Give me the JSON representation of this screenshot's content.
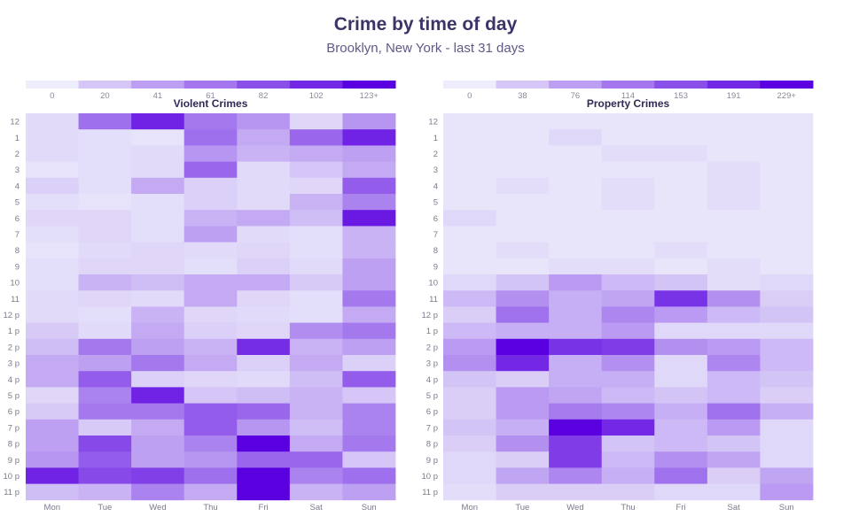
{
  "header": {
    "title": "Crime by time of day",
    "subtitle": "Brooklyn, New York - last 31 days"
  },
  "colors": {
    "low": "#ededfb",
    "high": "#5a00e0"
  },
  "chart_data": [
    {
      "type": "heatmap",
      "title": "Violent Crimes",
      "x": [
        "Mon",
        "Tue",
        "Wed",
        "Thu",
        "Fri",
        "Sat",
        "Sun"
      ],
      "y": [
        "12",
        "1",
        "2",
        "3",
        "4",
        "5",
        "6",
        "7",
        "8",
        "9",
        "10",
        "11",
        "12 p",
        "1 p",
        "2 p",
        "3 p",
        "4 p",
        "5 p",
        "6 p",
        "7 p",
        "8 p",
        "9 p",
        "10 p",
        "11 p"
      ],
      "legend": {
        "ticks": [
          "0",
          "20",
          "41",
          "61",
          "82",
          "102",
          "123+"
        ],
        "max": 123
      },
      "values": [
        [
          10,
          65,
          105,
          60,
          45,
          12,
          45
        ],
        [
          10,
          8,
          5,
          65,
          35,
          70,
          105
        ],
        [
          10,
          8,
          10,
          45,
          30,
          35,
          40
        ],
        [
          5,
          8,
          10,
          70,
          10,
          20,
          35
        ],
        [
          15,
          8,
          35,
          15,
          10,
          12,
          75
        ],
        [
          8,
          5,
          8,
          15,
          10,
          30,
          55
        ],
        [
          12,
          12,
          8,
          30,
          35,
          25,
          110
        ],
        [
          8,
          12,
          8,
          40,
          10,
          8,
          30
        ],
        [
          5,
          10,
          12,
          10,
          12,
          8,
          30
        ],
        [
          8,
          12,
          12,
          8,
          15,
          10,
          40
        ],
        [
          8,
          30,
          25,
          35,
          35,
          18,
          40
        ],
        [
          10,
          12,
          10,
          35,
          12,
          8,
          60
        ],
        [
          10,
          8,
          30,
          12,
          10,
          8,
          35
        ],
        [
          18,
          10,
          35,
          15,
          12,
          50,
          60
        ],
        [
          25,
          60,
          40,
          30,
          100,
          30,
          40
        ],
        [
          35,
          40,
          60,
          35,
          15,
          35,
          15
        ],
        [
          35,
          75,
          15,
          12,
          10,
          25,
          75
        ],
        [
          12,
          55,
          105,
          20,
          25,
          30,
          20
        ],
        [
          18,
          60,
          60,
          75,
          70,
          30,
          55
        ],
        [
          40,
          18,
          35,
          75,
          45,
          25,
          55
        ],
        [
          40,
          85,
          40,
          55,
          123,
          35,
          60
        ],
        [
          45,
          75,
          40,
          45,
          70,
          70,
          20
        ],
        [
          105,
          85,
          90,
          65,
          123,
          55,
          65
        ],
        [
          25,
          30,
          55,
          35,
          123,
          30,
          40
        ]
      ]
    },
    {
      "type": "heatmap",
      "title": "Property Crimes",
      "x": [
        "Mon",
        "Tue",
        "Wed",
        "Thu",
        "Fri",
        "Sat",
        "Sun"
      ],
      "y": [
        "12",
        "1",
        "2",
        "3",
        "4",
        "5",
        "6",
        "7",
        "8",
        "9",
        "10",
        "11",
        "12 p",
        "1 p",
        "2 p",
        "3 p",
        "4 p",
        "5 p",
        "6 p",
        "7 p",
        "8 p",
        "9 p",
        "10 p",
        "11 p"
      ],
      "legend": {
        "ticks": [
          "0",
          "38",
          "76",
          "114",
          "153",
          "191",
          "229+"
        ],
        "max": 229
      },
      "values": [
        [
          8,
          8,
          8,
          8,
          8,
          8,
          8
        ],
        [
          8,
          8,
          20,
          8,
          8,
          8,
          8
        ],
        [
          8,
          8,
          8,
          15,
          15,
          8,
          8
        ],
        [
          8,
          8,
          8,
          8,
          8,
          15,
          8
        ],
        [
          8,
          15,
          8,
          15,
          8,
          15,
          8
        ],
        [
          8,
          8,
          8,
          15,
          8,
          15,
          8
        ],
        [
          20,
          8,
          8,
          8,
          8,
          8,
          8
        ],
        [
          8,
          8,
          8,
          8,
          8,
          8,
          8
        ],
        [
          8,
          15,
          8,
          8,
          15,
          8,
          8
        ],
        [
          8,
          8,
          15,
          15,
          8,
          15,
          8
        ],
        [
          20,
          40,
          80,
          50,
          40,
          15,
          20
        ],
        [
          50,
          90,
          60,
          70,
          180,
          90,
          30
        ],
        [
          30,
          120,
          60,
          100,
          80,
          50,
          40
        ],
        [
          50,
          60,
          60,
          80,
          20,
          20,
          20
        ],
        [
          80,
          229,
          180,
          170,
          90,
          80,
          50
        ],
        [
          90,
          190,
          60,
          90,
          20,
          100,
          50
        ],
        [
          40,
          30,
          60,
          60,
          20,
          50,
          40
        ],
        [
          30,
          80,
          70,
          50,
          40,
          50,
          30
        ],
        [
          30,
          80,
          110,
          100,
          60,
          120,
          60
        ],
        [
          40,
          60,
          229,
          190,
          50,
          80,
          20
        ],
        [
          30,
          90,
          170,
          40,
          50,
          40,
          20
        ],
        [
          20,
          30,
          170,
          50,
          90,
          70,
          20
        ],
        [
          20,
          70,
          100,
          60,
          120,
          30,
          70
        ],
        [
          15,
          30,
          30,
          30,
          20,
          20,
          80
        ]
      ]
    }
  ]
}
